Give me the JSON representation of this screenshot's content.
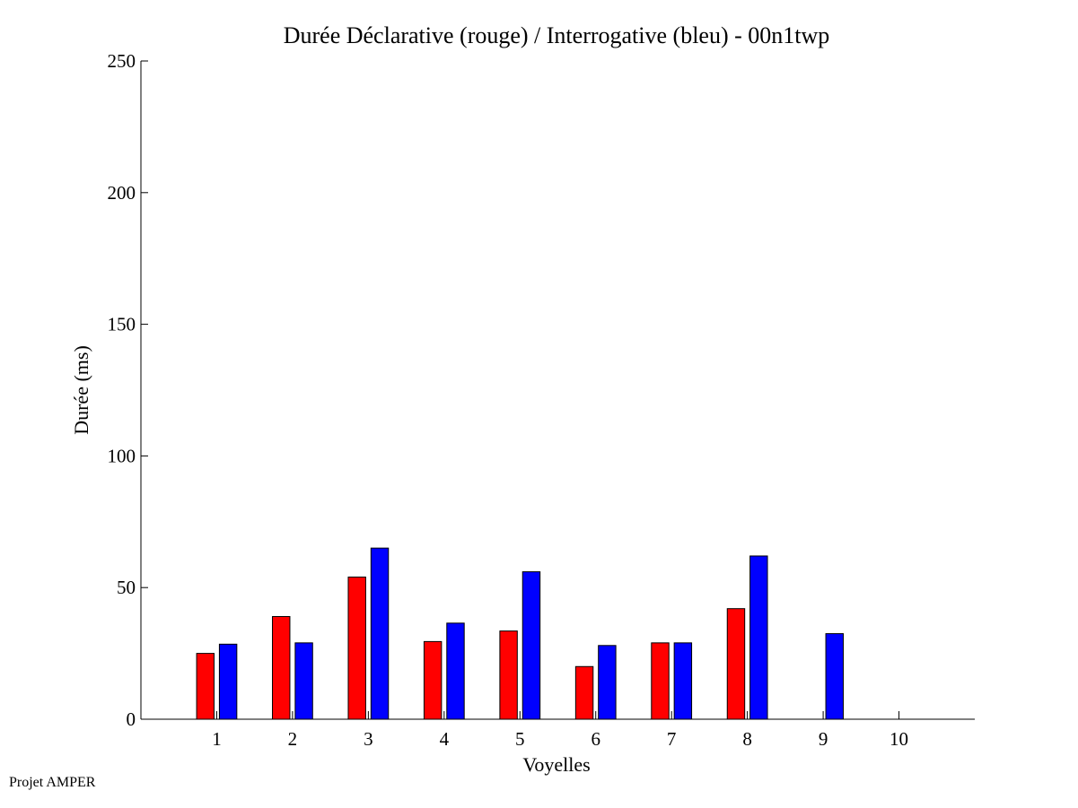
{
  "footer_text": "Projet AMPER",
  "chart_data": {
    "type": "bar",
    "title": "Durée Déclarative (rouge) / Interrogative (bleu) - 00n1twp",
    "xlabel": "Voyelles",
    "ylabel": "Durée (ms)",
    "ylim": [
      0,
      250
    ],
    "yticks": [
      0,
      50,
      100,
      150,
      200,
      250
    ],
    "categories": [
      "1",
      "2",
      "3",
      "4",
      "5",
      "6",
      "7",
      "8",
      "9",
      "10"
    ],
    "xlim": [
      0,
      11
    ],
    "grid": false,
    "series": [
      {
        "color": "#ff0000",
        "values": [
          25,
          39,
          54,
          29.5,
          33.5,
          20,
          29,
          42,
          null,
          null
        ]
      },
      {
        "color": "#0000ff",
        "values": [
          28.5,
          29,
          65,
          36.5,
          56,
          28,
          29,
          62,
          32.5,
          null
        ]
      }
    ]
  }
}
